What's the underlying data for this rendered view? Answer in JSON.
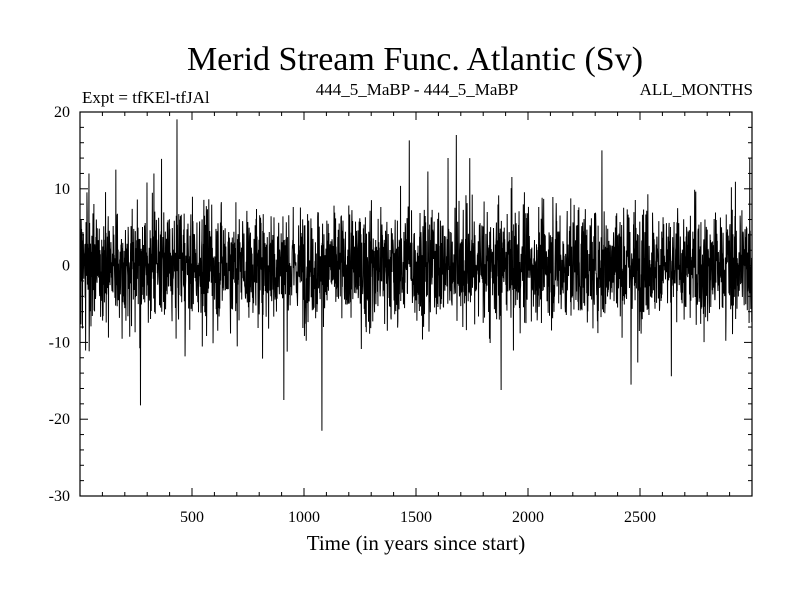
{
  "chart_data": {
    "type": "line",
    "title": "Merid Stream Func. Atlantic (Sv)",
    "subtitle_left": "Expt = tfKEl-tfJAl",
    "subtitle_center": "444_5_MaBP - 444_5_MaBP",
    "subtitle_right": "ALL_MONTHS",
    "xlabel": "Time (in years since start)",
    "ylabel": "",
    "xlim": [
      0,
      3000
    ],
    "ylim": [
      -30,
      20
    ],
    "xticks": [
      500,
      1000,
      1500,
      2000,
      2500
    ],
    "xtick_labels": [
      "500",
      "1000",
      "1500",
      "2000",
      "2500"
    ],
    "yticks": [
      -30,
      -20,
      -10,
      0,
      10,
      20
    ],
    "ytick_labels": [
      "-30",
      "-20",
      "-10",
      "0",
      "10",
      "20"
    ],
    "grid": false,
    "color": "#000000",
    "series": [
      {
        "noise_summary": "dense annual time series, mean near 0, typical range about -10 to 10 Sv",
        "notable_points": [
          {
            "x": 5,
            "y": 6
          },
          {
            "x": 40,
            "y": 12
          },
          {
            "x": 160,
            "y": 12.5
          },
          {
            "x": 270,
            "y": -18.2
          },
          {
            "x": 330,
            "y": 12
          },
          {
            "x": 910,
            "y": -17.5
          },
          {
            "x": 1080,
            "y": -21.5
          },
          {
            "x": 1470,
            "y": 16.3
          },
          {
            "x": 1680,
            "y": 17
          },
          {
            "x": 1740,
            "y": 14
          },
          {
            "x": 1880,
            "y": -16.2
          },
          {
            "x": 2330,
            "y": 15
          },
          {
            "x": 2460,
            "y": -15.5
          },
          {
            "x": 2640,
            "y": -14.4
          },
          {
            "x": 2990,
            "y": 14
          }
        ]
      }
    ]
  }
}
